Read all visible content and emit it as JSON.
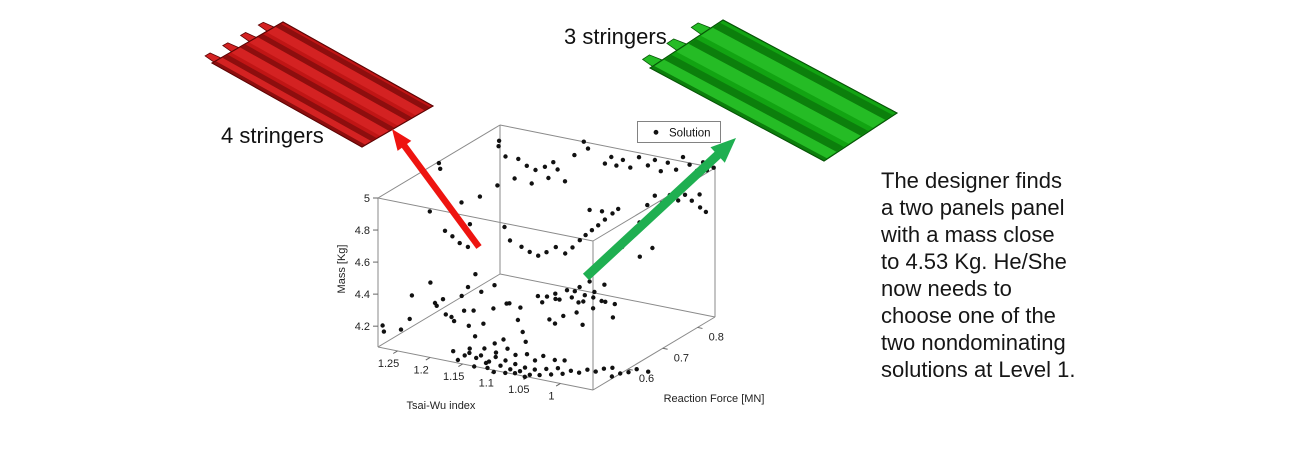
{
  "panels": {
    "red": {
      "label": "4 stringers",
      "stringers": 4,
      "colors": {
        "base": "#C01515",
        "bright": "#D42222",
        "dark": "#8D0E0E",
        "outline": "#5E0505"
      },
      "arrow_color": "#EE1410"
    },
    "green": {
      "label": "3 stringers",
      "stringers": 3,
      "colors": {
        "base": "#12A412",
        "bright": "#25BC25",
        "dark": "#0C7F0C",
        "outline": "#075507"
      },
      "arrow_color": "#1FAF51"
    }
  },
  "text_block": {
    "lines": [
      "The designer finds",
      "a two panels panel",
      "with a mass close",
      "to 4.53 Kg. He/She",
      "now needs to",
      "choose one of the",
      "two nondominating",
      "solutions at Level 1."
    ]
  },
  "chart_data": {
    "type": "scatter",
    "is_3d": true,
    "title": "",
    "legend": {
      "label": "Solution",
      "marker": "dot",
      "position": "top-right"
    },
    "marker_color": "#111111",
    "axes": {
      "x": {
        "label": "Tsai-Wu index",
        "ticks": [
          1.25,
          1.2,
          1.15,
          1.1,
          1.05,
          1
        ],
        "range": [
          1.28,
          0.95
        ]
      },
      "y": {
        "label": "Reaction Force [MN]",
        "ticks": [
          0.6,
          0.7,
          0.8
        ],
        "range": [
          0.5,
          0.85
        ]
      },
      "z": {
        "label": "Mass [Kg]",
        "ticks": [
          4.2,
          4.4,
          4.6,
          4.8,
          5
        ],
        "range": [
          4.07,
          5.0
        ]
      }
    },
    "points": [
      [
        1.24,
        0.6,
        5.12
      ],
      [
        1.246,
        0.615,
        5.06
      ],
      [
        1.26,
        0.81,
        4.97
      ],
      [
        1.25,
        0.79,
        4.97
      ],
      [
        1.21,
        0.735,
        5.01
      ],
      [
        1.2,
        0.753,
        4.98
      ],
      [
        1.18,
        0.74,
        4.97
      ],
      [
        1.165,
        0.737,
        4.96
      ],
      [
        1.148,
        0.732,
        5.0
      ],
      [
        1.141,
        0.743,
        5.02
      ],
      [
        1.122,
        0.72,
        5.02
      ],
      [
        1.115,
        0.755,
        5.07
      ],
      [
        1.1,
        0.7,
        4.99
      ],
      [
        1.13,
        0.81,
        5.07
      ],
      [
        1.115,
        0.794,
        5.06
      ],
      [
        1.082,
        0.781,
        5.01
      ],
      [
        1.075,
        0.786,
        5.05
      ],
      [
        1.065,
        0.782,
        5.01
      ],
      [
        1.056,
        0.784,
        5.05
      ],
      [
        1.042,
        0.779,
        5.02
      ],
      [
        1.049,
        0.817,
        5.03
      ],
      [
        1.023,
        0.794,
        5.03
      ],
      [
        1.016,
        0.801,
        5.06
      ],
      [
        1.0,
        0.788,
        5.02
      ],
      [
        0.993,
        0.795,
        5.07
      ],
      [
        0.976,
        0.787,
        5.05
      ],
      [
        0.983,
        0.82,
        5.08
      ],
      [
        0.967,
        0.809,
        5.06
      ],
      [
        0.95,
        0.798,
        5.05
      ],
      [
        0.95,
        0.816,
        5.08
      ],
      [
        0.955,
        0.836,
        5.0
      ],
      [
        0.952,
        0.85,
        5.0
      ],
      [
        1.231,
        0.648,
        4.82
      ],
      [
        1.221,
        0.682,
        4.82
      ],
      [
        1.207,
        0.706,
        4.87
      ],
      [
        1.188,
        0.72,
        4.91
      ],
      [
        1.165,
        0.726,
        4.89
      ],
      [
        1.141,
        0.729,
        4.94
      ],
      [
        1.247,
        0.587,
        4.83
      ],
      [
        1.22,
        0.58,
        4.74
      ],
      [
        1.207,
        0.577,
        4.72
      ],
      [
        1.198,
        0.581,
        4.68
      ],
      [
        1.181,
        0.573,
        4.68
      ],
      [
        1.171,
        0.577,
        4.7
      ],
      [
        1.201,
        0.616,
        4.75
      ],
      [
        1.165,
        0.648,
        4.72
      ],
      [
        1.148,
        0.632,
        4.67
      ],
      [
        1.132,
        0.635,
        4.64
      ],
      [
        1.122,
        0.64,
        4.61
      ],
      [
        1.108,
        0.638,
        4.6
      ],
      [
        1.099,
        0.645,
        4.62
      ],
      [
        1.089,
        0.653,
        4.65
      ],
      [
        1.075,
        0.654,
        4.62
      ],
      [
        1.066,
        0.658,
        4.66
      ],
      [
        1.059,
        0.666,
        4.7
      ],
      [
        1.056,
        0.677,
        4.72
      ],
      [
        1.049,
        0.682,
        4.75
      ],
      [
        1.042,
        0.687,
        4.78
      ],
      [
        1.036,
        0.695,
        4.81
      ],
      [
        1.066,
        0.707,
        4.83
      ],
      [
        1.049,
        0.711,
        4.83
      ],
      [
        1.033,
        0.711,
        4.83
      ],
      [
        1.029,
        0.72,
        4.85
      ],
      [
        1.0,
        0.727,
        4.78
      ],
      [
        1.009,
        0.766,
        4.83
      ],
      [
        1.006,
        0.782,
        4.87
      ],
      [
        0.993,
        0.778,
        4.84
      ],
      [
        0.99,
        0.795,
        4.87
      ],
      [
        0.976,
        0.793,
        4.85
      ],
      [
        0.973,
        0.807,
        4.87
      ],
      [
        0.96,
        0.802,
        4.85
      ],
      [
        0.957,
        0.819,
        4.87
      ],
      [
        0.95,
        0.824,
        4.76
      ],
      [
        0.953,
        0.813,
        4.8
      ],
      [
        0.983,
        0.696,
        4.62
      ],
      [
        0.976,
        0.719,
        4.65
      ],
      [
        1.016,
        0.707,
        4.64
      ],
      [
        1.273,
        0.5,
        4.21
      ],
      [
        1.272,
        0.502,
        4.17
      ],
      [
        1.242,
        0.52,
        4.25
      ],
      [
        1.25,
        0.51,
        4.19
      ],
      [
        1.214,
        0.563,
        4.34
      ],
      [
        1.222,
        0.555,
        4.32
      ],
      [
        1.2,
        0.545,
        4.28
      ],
      [
        1.19,
        0.55,
        4.24
      ],
      [
        1.18,
        0.56,
        4.3
      ],
      [
        1.17,
        0.555,
        4.22
      ],
      [
        1.16,
        0.55,
        4.33
      ],
      [
        1.155,
        0.545,
        4.18
      ],
      [
        1.21,
        0.58,
        4.21
      ],
      [
        1.135,
        0.56,
        4.35
      ],
      [
        1.12,
        0.57,
        4.38
      ],
      [
        1.1,
        0.565,
        4.3
      ],
      [
        1.09,
        0.56,
        4.24
      ],
      [
        1.145,
        0.55,
        4.26
      ],
      [
        1.105,
        0.55,
        4.42
      ],
      [
        1.125,
        0.545,
        4.16
      ],
      [
        1.113,
        0.548,
        4.19
      ],
      [
        1.08,
        0.55,
        4.2
      ],
      [
        1.06,
        0.56,
        4.45
      ],
      [
        1.05,
        0.555,
        4.5
      ],
      [
        1.045,
        0.57,
        4.47
      ],
      [
        1.04,
        0.56,
        4.52
      ],
      [
        1.033,
        0.559,
        4.49
      ],
      [
        1.03,
        0.575,
        4.53
      ],
      [
        1.02,
        0.57,
        4.5
      ],
      [
        1.015,
        0.58,
        4.46
      ],
      [
        1.01,
        0.565,
        4.42
      ],
      [
        1.005,
        0.575,
        4.48
      ],
      [
        1.0,
        0.57,
        4.53
      ],
      [
        0.995,
        0.585,
        4.5
      ],
      [
        0.99,
        0.575,
        4.45
      ],
      [
        0.985,
        0.59,
        4.48
      ],
      [
        0.976,
        0.584,
        4.49
      ],
      [
        0.97,
        0.6,
        4.46
      ],
      [
        0.965,
        0.585,
        4.4
      ],
      [
        1.025,
        0.555,
        4.4
      ],
      [
        1.035,
        0.55,
        4.35
      ],
      [
        0.998,
        0.56,
        4.36
      ],
      [
        0.98,
        0.56,
        4.58
      ],
      [
        0.97,
        0.57,
        4.62
      ],
      [
        0.99,
        0.565,
        4.63
      ],
      [
        1.0,
        0.555,
        4.6
      ],
      [
        1.01,
        0.56,
        4.56
      ],
      [
        1.17,
        0.51,
        4.12
      ],
      [
        1.155,
        0.515,
        4.1
      ],
      [
        1.145,
        0.51,
        4.13
      ],
      [
        1.14,
        0.52,
        4.09
      ],
      [
        1.13,
        0.515,
        4.12
      ],
      [
        1.125,
        0.52,
        4.07
      ],
      [
        1.115,
        0.51,
        4.1
      ],
      [
        1.11,
        0.52,
        4.12
      ],
      [
        1.1,
        0.515,
        4.08
      ],
      [
        1.095,
        0.52,
        4.11
      ],
      [
        1.085,
        0.515,
        4.07
      ],
      [
        1.08,
        0.52,
        4.1
      ],
      [
        1.07,
        0.515,
        4.07
      ],
      [
        1.065,
        0.52,
        4.09
      ],
      [
        1.055,
        0.515,
        4.06
      ],
      [
        1.05,
        0.52,
        4.09
      ],
      [
        1.04,
        0.515,
        4.07
      ],
      [
        1.035,
        0.525,
        4.1
      ],
      [
        1.025,
        0.52,
        4.08
      ],
      [
        1.02,
        0.53,
        4.11
      ],
      [
        1.01,
        0.525,
        4.09
      ],
      [
        1.0,
        0.53,
        4.11
      ],
      [
        0.99,
        0.535,
        4.1
      ],
      [
        0.98,
        0.54,
        4.12
      ],
      [
        0.97,
        0.545,
        4.11
      ],
      [
        0.96,
        0.55,
        4.13
      ],
      [
        0.955,
        0.565,
        4.12
      ],
      [
        0.945,
        0.545,
        4.1
      ],
      [
        0.935,
        0.55,
        4.12
      ],
      [
        0.925,
        0.555,
        4.13
      ],
      [
        0.915,
        0.56,
        4.15
      ],
      [
        0.9,
        0.565,
        4.14
      ],
      [
        1.16,
        0.505,
        4.08
      ],
      [
        1.135,
        0.505,
        4.06
      ],
      [
        1.12,
        0.515,
        4.05
      ],
      [
        1.105,
        0.505,
        4.05
      ],
      [
        1.09,
        0.51,
        4.05
      ],
      [
        1.075,
        0.51,
        4.06
      ],
      [
        1.06,
        0.51,
        4.05
      ],
      [
        1.15,
        0.52,
        4.14
      ],
      [
        1.13,
        0.525,
        4.15
      ],
      [
        1.115,
        0.53,
        4.13
      ],
      [
        1.1,
        0.535,
        4.16
      ],
      [
        1.085,
        0.53,
        4.14
      ],
      [
        1.07,
        0.535,
        4.15
      ],
      [
        1.055,
        0.53,
        4.13
      ],
      [
        1.045,
        0.535,
        4.16
      ],
      [
        1.03,
        0.54,
        4.14
      ],
      [
        1.015,
        0.54,
        4.15
      ],
      [
        1.19,
        0.59,
        4.4
      ],
      [
        1.175,
        0.6,
        4.37
      ],
      [
        1.16,
        0.61,
        4.41
      ],
      [
        1.205,
        0.6,
        4.32
      ],
      [
        1.23,
        0.575,
        4.27
      ],
      [
        1.115,
        0.6,
        4.32
      ],
      [
        1.065,
        0.59,
        4.3
      ],
      [
        1.08,
        0.585,
        4.44
      ],
      [
        1.2,
        0.63,
        4.42
      ],
      [
        1.245,
        0.585,
        4.39
      ],
      [
        1.26,
        0.56,
        4.33
      ]
    ]
  }
}
